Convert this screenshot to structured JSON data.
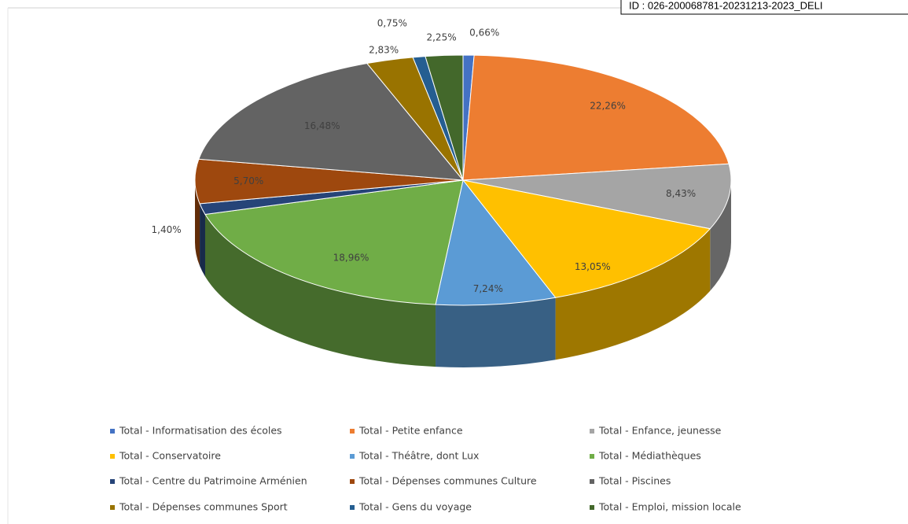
{
  "document_id": "ID : 026-200068781-20231213-2023_DELI",
  "chart_data": {
    "type": "pie3d",
    "categories": [
      "Total - Informatisation des écoles",
      "Total - Petite enfance",
      "Total - Enfance, jeunesse",
      "Total - Conservatoire",
      "Total - Théâtre, dont Lux",
      "Total - Médiathèques",
      "Total - Centre du Patrimoine Arménien",
      "Total - Dépenses communes Culture",
      "Total - Piscines",
      "Total - Dépenses communes Sport",
      "Total - Gens du voyage",
      "Total - Emploi, mission locale"
    ],
    "values": [
      0.66,
      22.26,
      8.43,
      13.05,
      7.24,
      18.96,
      1.4,
      5.7,
      16.48,
      2.83,
      0.75,
      2.25
    ],
    "value_labels": [
      "0,66%",
      "22,26%",
      "8,43%",
      "13,05%",
      "7,24%",
      "18,96%",
      "1,40%",
      "5,70%",
      "16,48%",
      "2,83%",
      "0,75%",
      "2,25%"
    ],
    "colors": [
      "#4472c4",
      "#ed7d31",
      "#a5a5a5",
      "#ffc000",
      "#5b9bd5",
      "#70ad47",
      "#264478",
      "#9e480e",
      "#636363",
      "#997300",
      "#255e91",
      "#43682b"
    ],
    "legend": "bottom"
  }
}
